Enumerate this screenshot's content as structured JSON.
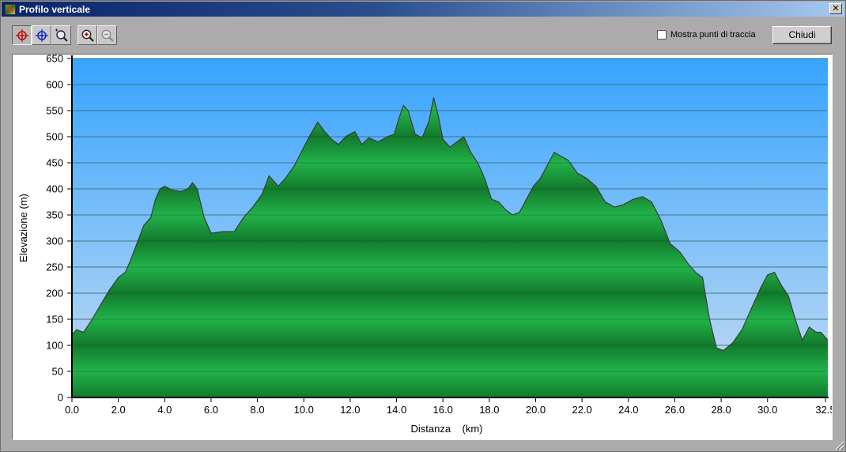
{
  "window": {
    "title": "Profilo verticale",
    "close_glyph": "✕"
  },
  "toolbar": {
    "tools": [
      {
        "name": "select-point-tool",
        "icon": "crosshair-red-icon",
        "pressed": true
      },
      {
        "name": "select-point-tool-blue",
        "icon": "crosshair-blue-icon",
        "pressed": false
      },
      {
        "name": "zoom-area-tool",
        "icon": "zoom-area-icon",
        "pressed": false
      },
      {
        "name": "zoom-in-tool",
        "icon": "zoom-in-icon",
        "pressed": false
      },
      {
        "name": "zoom-out-tool",
        "icon": "zoom-out-icon",
        "pressed": false
      }
    ]
  },
  "options": {
    "show_track_points_label": "Mostra punti di traccia",
    "show_track_points_checked": false
  },
  "buttons": {
    "close_label": "Chiudi"
  },
  "chart_data": {
    "type": "area",
    "title": "",
    "xlabel": "Distanza    (km)",
    "ylabel": "Elevazione (m)",
    "xlim": [
      0,
      32.6
    ],
    "ylim": [
      0,
      650
    ],
    "x_ticks": [
      "0.0",
      "2.0",
      "4.0",
      "6.0",
      "8.0",
      "10.0",
      "12.0",
      "14.0",
      "16.0",
      "18.0",
      "20.0",
      "22.0",
      "24.0",
      "26.0",
      "28.0",
      "30.0",
      "32.5"
    ],
    "x_tick_values": [
      0,
      2,
      4,
      6,
      8,
      10,
      12,
      14,
      16,
      18,
      20,
      22,
      24,
      26,
      28,
      30,
      32.5
    ],
    "y_ticks": [
      0,
      50,
      100,
      150,
      200,
      250,
      300,
      350,
      400,
      450,
      500,
      550,
      600,
      650
    ],
    "grid": true,
    "colors": {
      "sky_top": "#36a4ff",
      "sky_bottom": "#c5dcf2",
      "fill_light": "#22b24a",
      "fill_dark": "#127a2c",
      "outline": "#3a3a3a"
    },
    "series": [
      {
        "x": [
          0,
          0.2,
          0.5,
          0.8,
          1.2,
          1.6,
          2.0,
          2.3,
          2.5,
          2.8,
          3.1,
          3.4,
          3.6,
          3.8,
          4.0,
          4.3,
          4.7,
          5.0,
          5.2,
          5.4,
          5.7,
          6.0,
          6.5,
          7.0,
          7.4,
          7.8,
          8.2,
          8.5,
          8.9,
          9.2,
          9.6,
          10.0,
          10.3,
          10.6,
          10.9,
          11.2,
          11.5,
          11.8,
          12.2,
          12.5,
          12.8,
          13.2,
          13.6,
          13.9,
          14.1,
          14.3,
          14.5,
          14.8,
          15.1,
          15.4,
          15.6,
          15.8,
          16.0,
          16.3,
          16.6,
          16.9,
          17.2,
          17.5,
          17.8,
          18.1,
          18.4,
          18.7,
          19.0,
          19.3,
          19.6,
          19.9,
          20.2,
          20.5,
          20.8,
          21.0,
          21.4,
          21.8,
          22.2,
          22.6,
          23.0,
          23.4,
          23.8,
          24.2,
          24.6,
          25.0,
          25.4,
          25.8,
          26.2,
          26.6,
          26.9,
          27.2,
          27.5,
          27.8,
          28.1,
          28.5,
          28.9,
          29.3,
          29.7,
          30.0,
          30.3,
          30.6,
          30.9,
          31.2,
          31.5,
          31.8,
          32.1,
          32.3,
          32.6
        ],
        "y": [
          120,
          130,
          125,
          145,
          175,
          205,
          230,
          240,
          260,
          295,
          330,
          345,
          380,
          400,
          405,
          398,
          395,
          400,
          412,
          400,
          345,
          315,
          318,
          318,
          345,
          365,
          390,
          425,
          405,
          420,
          445,
          480,
          505,
          528,
          510,
          495,
          485,
          500,
          510,
          485,
          498,
          490,
          500,
          505,
          535,
          560,
          550,
          505,
          498,
          530,
          575,
          540,
          495,
          480,
          490,
          500,
          470,
          450,
          420,
          380,
          375,
          360,
          350,
          355,
          380,
          405,
          420,
          445,
          470,
          465,
          455,
          430,
          420,
          405,
          375,
          365,
          370,
          380,
          385,
          375,
          340,
          295,
          280,
          255,
          240,
          230,
          150,
          95,
          90,
          105,
          130,
          170,
          210,
          235,
          240,
          215,
          195,
          150,
          110,
          135,
          125,
          125,
          110
        ]
      }
    ]
  }
}
